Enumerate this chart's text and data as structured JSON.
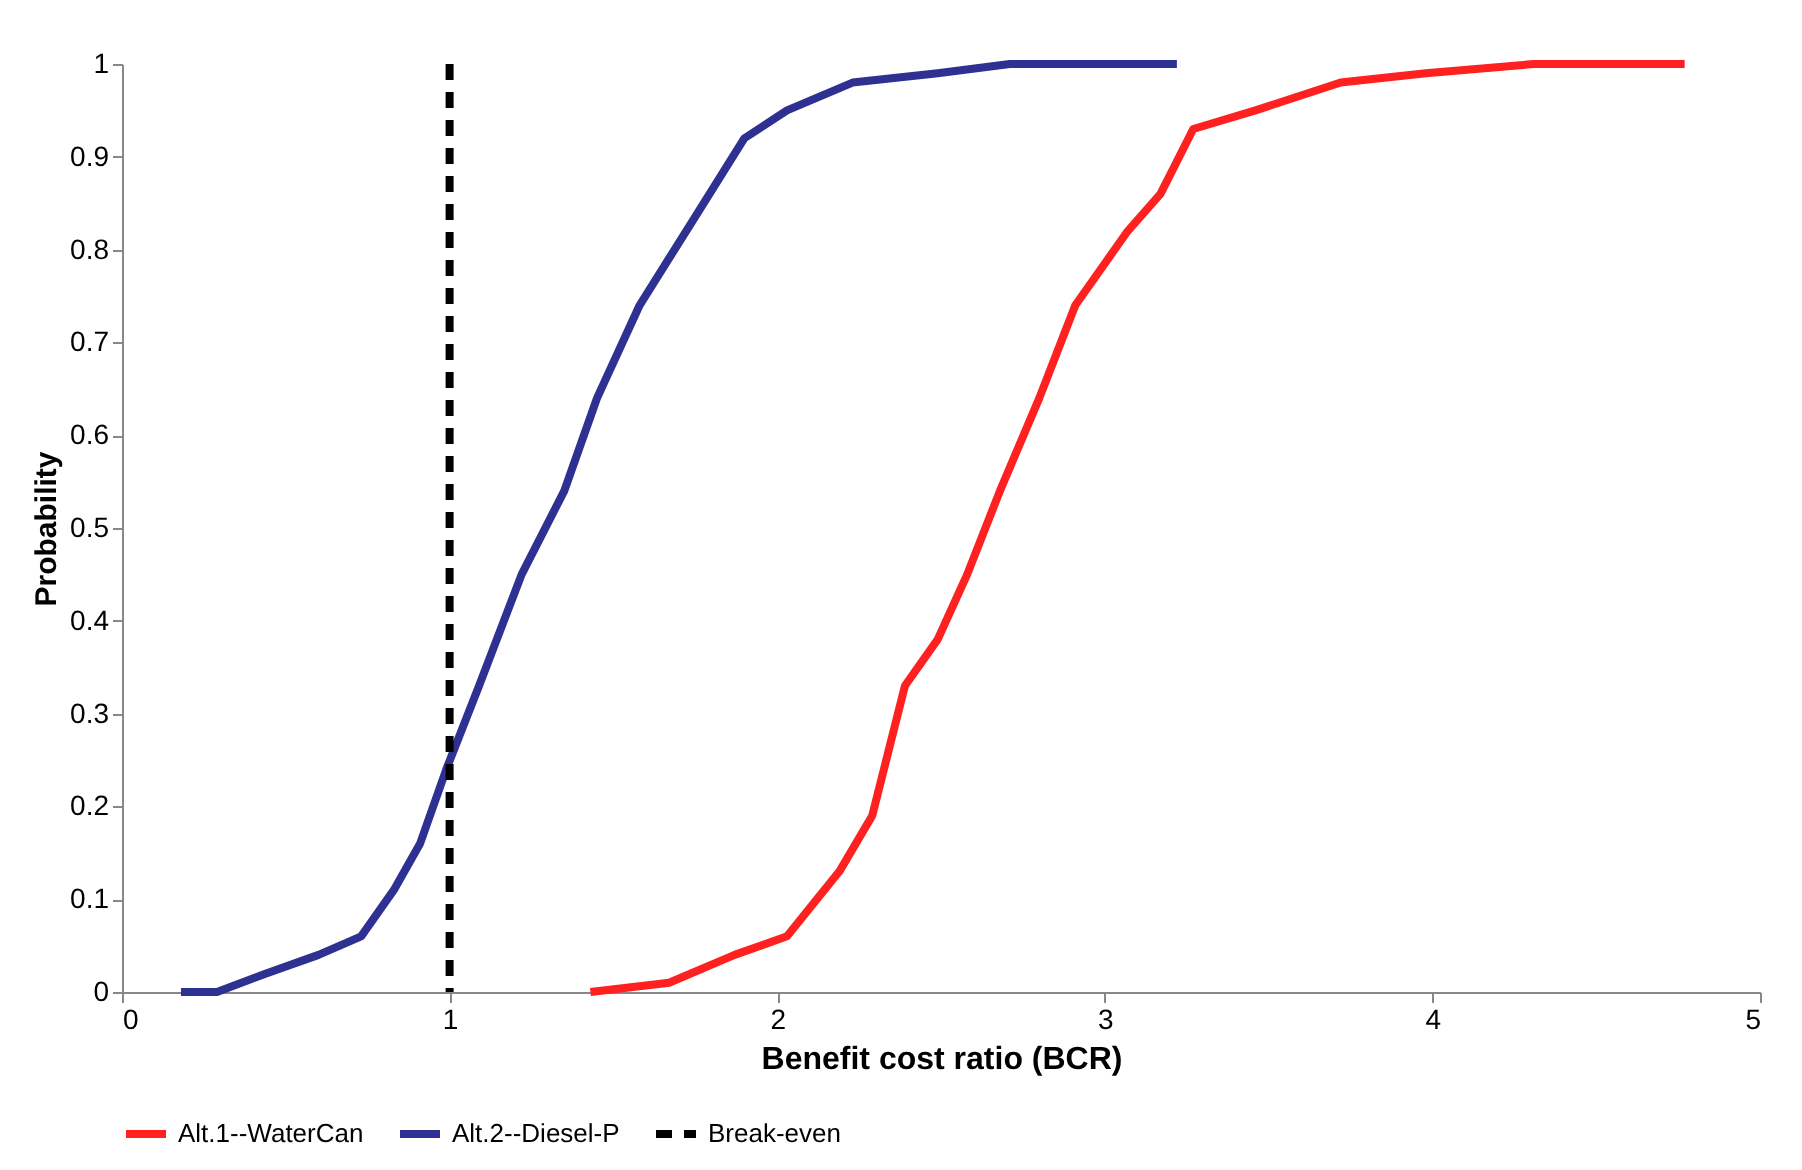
{
  "chart_data": {
    "type": "line",
    "xlabel": "Benefit cost ratio (BCR)",
    "ylabel": "Probability",
    "xlim": [
      0,
      5
    ],
    "xticks": [
      0,
      1,
      2,
      3,
      4,
      5
    ],
    "ylim": [
      0,
      1
    ],
    "yticks": [
      0,
      0.1,
      0.2,
      0.3,
      0.4,
      0.5,
      0.6,
      0.7,
      0.8,
      0.9,
      1
    ],
    "legend": "bottom",
    "marker": "none",
    "line_style": "solid",
    "series": [
      {
        "name": "Alt.1--WaterCan",
        "color": "#ff2020",
        "x": [
          1.43,
          1.67,
          1.87,
          2.03,
          2.19,
          2.29,
          2.39,
          2.49,
          2.58,
          2.68,
          2.8,
          2.91,
          3.07,
          3.17,
          3.27,
          3.46,
          3.72,
          3.98,
          4.31,
          4.77
        ],
        "values": [
          0.0,
          0.01,
          0.04,
          0.06,
          0.13,
          0.19,
          0.33,
          0.38,
          0.45,
          0.54,
          0.64,
          0.74,
          0.82,
          0.86,
          0.93,
          0.95,
          0.98,
          0.99,
          1.0,
          1.0
        ]
      },
      {
        "name": "Alt.2--Diesel-P",
        "color": "#2e3192",
        "x": [
          0.18,
          0.29,
          0.44,
          0.6,
          0.73,
          0.83,
          0.91,
          0.99,
          1.09,
          1.22,
          1.35,
          1.45,
          1.58,
          1.74,
          1.9,
          2.03,
          2.23,
          2.49,
          2.71,
          3.22
        ],
        "values": [
          0.0,
          0.0,
          0.02,
          0.04,
          0.06,
          0.11,
          0.16,
          0.24,
          0.33,
          0.45,
          0.54,
          0.64,
          0.74,
          0.83,
          0.92,
          0.95,
          0.98,
          0.99,
          1.0,
          1.0
        ]
      }
    ],
    "ref_lines": [
      {
        "axis": "x",
        "value": 1,
        "label": "Break-even",
        "color": "#000000",
        "line_style": "dashed"
      }
    ]
  }
}
